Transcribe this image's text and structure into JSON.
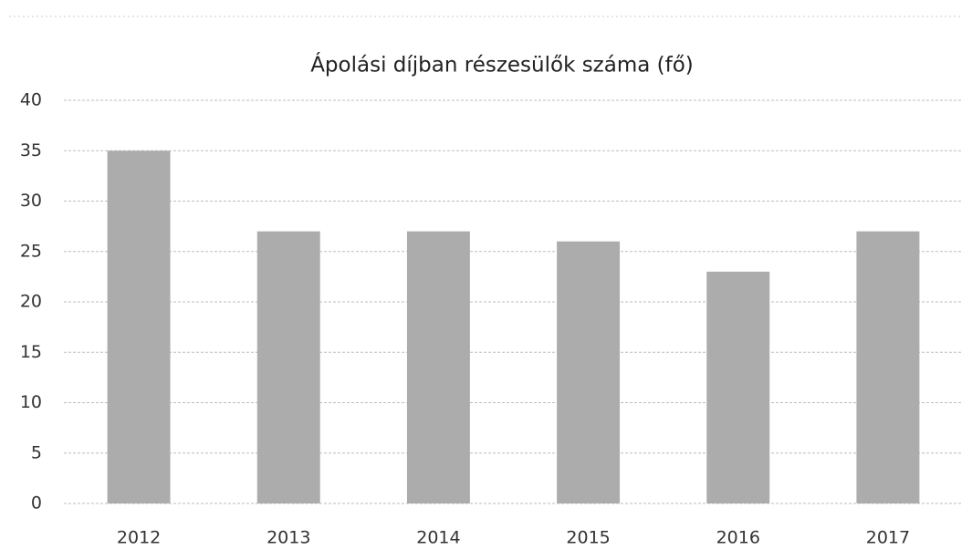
{
  "chart_data": {
    "type": "bar",
    "title": "Ápolási díjban részesülők száma (fő)",
    "categories": [
      "2012",
      "2013",
      "2014",
      "2015",
      "2016",
      "2017"
    ],
    "values": [
      35,
      27,
      27,
      26,
      23,
      27
    ],
    "color": "#acacac",
    "ylim": [
      0,
      40
    ],
    "yticks": [
      0,
      5,
      10,
      15,
      20,
      25,
      30,
      35,
      40
    ],
    "grid": true
  }
}
